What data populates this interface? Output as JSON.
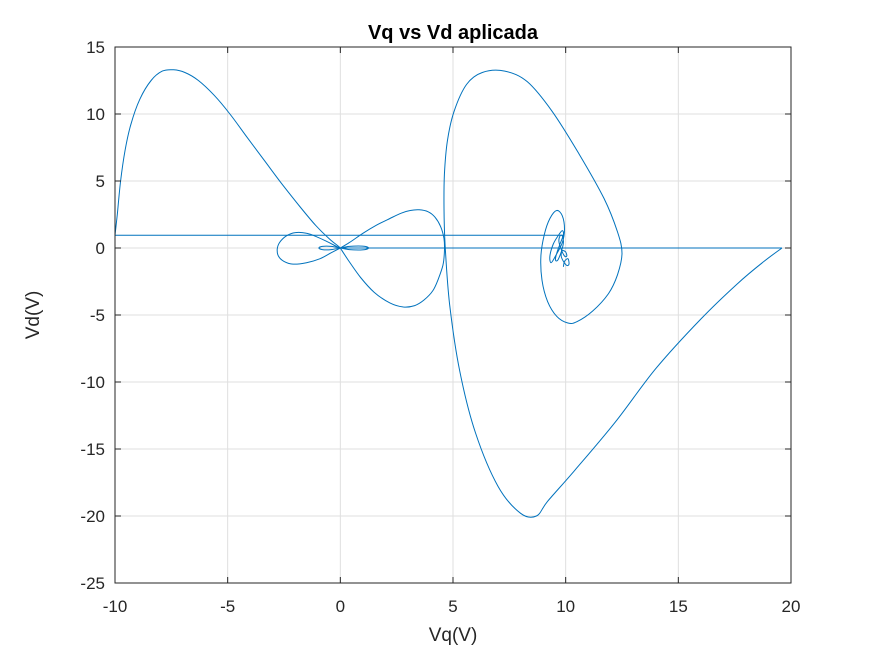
{
  "chart_data": {
    "type": "line",
    "title": "Vq vs Vd aplicada",
    "xlabel": "Vq(V)",
    "ylabel": "Vd(V)",
    "xlim": [
      -10,
      20
    ],
    "ylim": [
      -25,
      15
    ],
    "xticks": [
      -10,
      -5,
      0,
      5,
      10,
      15,
      20
    ],
    "yticks": [
      -25,
      -20,
      -15,
      -10,
      -5,
      0,
      5,
      10,
      15
    ],
    "xtick_labels": [
      "-10",
      "-5",
      "0",
      "5",
      "10",
      "15",
      "20"
    ],
    "ytick_labels": [
      "-25",
      "-20",
      "-15",
      "-10",
      "-5",
      "0",
      "5",
      "10",
      "15"
    ],
    "grid": true,
    "line_color": "#0072BD",
    "series": [
      {
        "x": [
          19.6,
          18.8,
          17.6,
          16.0,
          14.0,
          12.2,
          10.4,
          9.2,
          8.7,
          8.0,
          7.0,
          6.0,
          5.3,
          4.85,
          4.65,
          4.6,
          4.62,
          4.75,
          5.05,
          5.6,
          6.3,
          7.3,
          8.3,
          9.4,
          10.6,
          11.7,
          12.3,
          12.5,
          12.3,
          11.9,
          11.2,
          10.5,
          10.1,
          9.6,
          9.2,
          8.95,
          8.9,
          9.05,
          9.3,
          9.6,
          9.85,
          9.95,
          9.85,
          9.55,
          9.35,
          9.3,
          9.45,
          9.7,
          9.85,
          9.9,
          9.75,
          9.6,
          9.55,
          9.65,
          9.8,
          9.9,
          9.85,
          9.75,
          9.7,
          9.8,
          9.95,
          10.05,
          10.0,
          9.85,
          9.8,
          9.9,
          10.05,
          10.15,
          10.1,
          9.95,
          9.9
        ],
        "y": [
          0.0,
          -1.0,
          -2.7,
          -5.3,
          -9.0,
          -13.0,
          -16.6,
          -18.9,
          -20.0,
          -19.8,
          -17.8,
          -13.8,
          -9.2,
          -4.2,
          0.2,
          3.0,
          5.5,
          8.0,
          10.2,
          12.2,
          13.1,
          13.2,
          12.4,
          10.2,
          7.0,
          3.7,
          1.2,
          -0.4,
          -2.0,
          -3.4,
          -4.7,
          -5.5,
          -5.6,
          -5.1,
          -4.0,
          -2.4,
          -0.6,
          1.0,
          2.2,
          2.8,
          2.4,
          1.4,
          0.4,
          -0.6,
          -1.1,
          -0.6,
          0.3,
          1.0,
          1.3,
          1.0,
          0.3,
          -0.4,
          -0.9,
          -0.9,
          -0.3,
          0.4,
          0.9,
          0.9,
          0.5,
          -0.1,
          -0.6,
          -0.6,
          -0.3,
          -0.2,
          -0.6,
          -1.0,
          -1.3,
          -1.2,
          -0.8,
          -1.0,
          -1.4
        ]
      },
      {
        "x": [
          -10.0,
          9.9
        ],
        "y": [
          0.95,
          0.95
        ]
      },
      {
        "x": [
          -10.0,
          -9.9,
          -9.75,
          -9.55,
          -9.3,
          -8.9,
          -8.4,
          -7.9,
          -7.4,
          -6.9,
          -6.3,
          -5.6,
          -4.9,
          -4.2,
          -3.4,
          -2.6,
          -1.8,
          -1.1,
          -0.5,
          -0.1,
          0.0
        ],
        "y": [
          0.95,
          2.5,
          5.0,
          7.3,
          9.2,
          11.1,
          12.5,
          13.2,
          13.3,
          13.1,
          12.5,
          11.4,
          10.0,
          8.4,
          6.6,
          4.8,
          3.1,
          1.7,
          0.7,
          0.15,
          0.0
        ]
      },
      {
        "x": [
          0.0,
          0.4,
          1.0,
          1.6,
          2.2,
          2.7,
          3.1,
          3.5,
          3.9,
          4.2,
          4.45,
          4.6,
          4.62,
          4.55,
          4.35,
          4.1,
          3.7,
          3.3,
          2.8,
          2.2,
          1.5,
          0.9,
          0.35,
          0.0
        ],
        "y": [
          0.0,
          0.4,
          1.1,
          1.7,
          2.2,
          2.6,
          2.8,
          2.85,
          2.7,
          2.3,
          1.6,
          0.7,
          -0.3,
          -1.3,
          -2.3,
          -3.2,
          -3.9,
          -4.3,
          -4.4,
          -4.1,
          -3.3,
          -2.2,
          -0.9,
          0.0
        ]
      },
      {
        "x": [
          0.0,
          -0.4,
          -0.9,
          -1.5,
          -2.1,
          -2.5,
          -2.75,
          -2.8,
          -2.7,
          -2.4,
          -2.0,
          -1.5,
          -1.0,
          -0.5,
          -0.15,
          0.0
        ],
        "y": [
          0.0,
          -0.35,
          -0.8,
          -1.1,
          -1.2,
          -1.0,
          -0.6,
          -0.1,
          0.4,
          0.9,
          1.15,
          1.1,
          0.8,
          0.4,
          0.1,
          0.0
        ]
      },
      {
        "x": [
          0.0,
          0.4,
          0.8,
          1.1,
          1.25,
          1.1,
          0.8,
          0.4,
          0.0,
          -0.4,
          -0.8,
          -0.95,
          -0.8,
          -0.4,
          0.0
        ],
        "y": [
          0.0,
          0.12,
          0.15,
          0.12,
          0.0,
          -0.12,
          -0.15,
          -0.12,
          0.0,
          0.12,
          0.12,
          0.0,
          -0.12,
          -0.12,
          0.0
        ]
      },
      {
        "x": [
          0.0,
          19.6
        ],
        "y": [
          0.0,
          0.0
        ]
      }
    ]
  }
}
